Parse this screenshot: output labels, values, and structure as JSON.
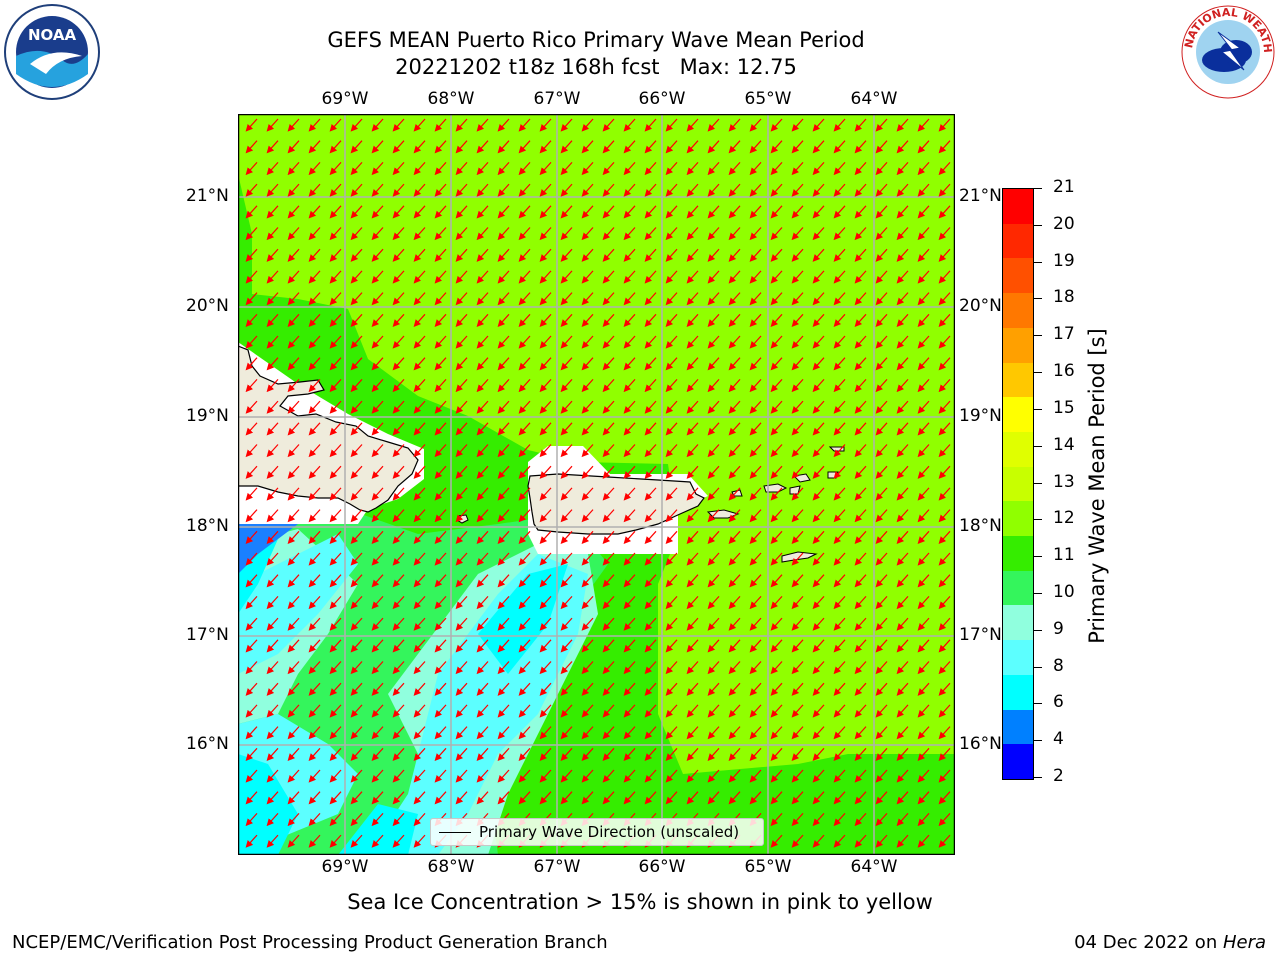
{
  "title": {
    "line1": "GEFS MEAN Puerto Rico Primary Wave Mean Period",
    "line2": "20221202 t18z 168h fcst   Max: 12.75"
  },
  "map": {
    "lon_labels": [
      "69°W",
      "68°W",
      "67°W",
      "66°W",
      "65°W",
      "64°W"
    ],
    "lat_labels": [
      "21°N",
      "20°N",
      "19°N",
      "18°N",
      "17°N",
      "16°N"
    ],
    "legend_label": "Primary Wave Direction (unscaled)",
    "colors": {
      "land": "#efecdc",
      "arrow": "#ff0000",
      "grid": "#b0b0b0"
    }
  },
  "colorbar": {
    "title": "Primary Wave Mean Period [s]",
    "ticks": [
      "21",
      "20",
      "19",
      "18",
      "17",
      "16",
      "15",
      "14",
      "13",
      "12",
      "11",
      "10",
      "9",
      "8",
      "6",
      "4",
      "2"
    ],
    "colors_top_to_bottom": [
      "#ff0000",
      "#ff2800",
      "#ff5000",
      "#ff7800",
      "#ffa000",
      "#ffc800",
      "#ffff00",
      "#e0ff00",
      "#c8ff00",
      "#90ff00",
      "#35ed00",
      "#34f55c",
      "#90ffde",
      "#5cffff",
      "#00ffff",
      "#0080ff",
      "#0000ff"
    ]
  },
  "sea_ice_note": "Sea Ice Concentration > 15% is shown in pink to yellow",
  "footer": {
    "left": "NCEP/EMC/Verification Post Processing Product Generation Branch",
    "right_date": "04 Dec 2022 on ",
    "right_host": "Hera"
  },
  "logos": {
    "noaa_text": "NOAA",
    "nws_text": "NATIONAL WEATHER SERVICE"
  }
}
